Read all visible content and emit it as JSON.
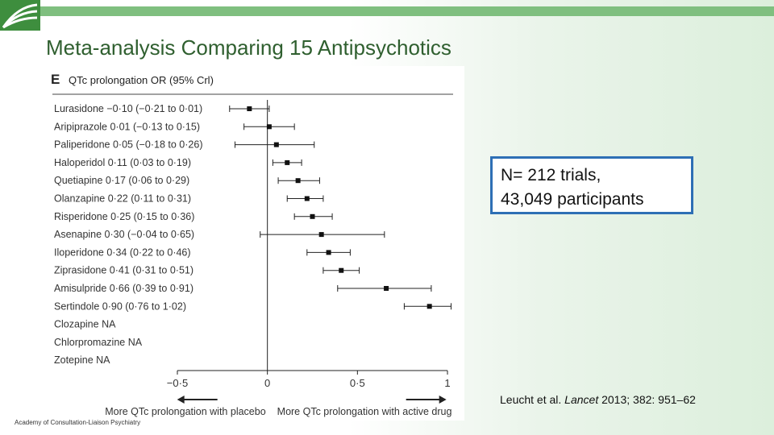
{
  "slide": {
    "title": "Meta-analysis Comparing 15 Antipsychotics",
    "stats_line1": "N= 212 trials,",
    "stats_line2": "43,049 participants",
    "citation_pre": "Leucht et al. ",
    "citation_journal": "Lancet",
    "citation_post": " 2013; 382: 951–62",
    "footer": "Academy of Consultation-Liaison Psychiatry",
    "accent_green": "#7fbf7f",
    "box_border": "#2e6fb5"
  },
  "chart_data": {
    "type": "forest",
    "panel_letter": "E",
    "title": "QTc prolongation OR (95% Crl)",
    "xlim": [
      -0.5,
      1
    ],
    "xticks": [
      "−0·5",
      "0",
      "0·5",
      "1"
    ],
    "tick_values": [
      -0.5,
      0,
      0.5,
      1
    ],
    "left_arrow_label": "More QTc prolongation with placebo",
    "right_arrow_label": "More QTc prolongation with active drug",
    "rows": [
      {
        "label": "Lurasidone −0·10 (−0·21 to 0·01)",
        "est": -0.1,
        "lo": -0.21,
        "hi": 0.01
      },
      {
        "label": "Aripiprazole 0·01 (−0·13 to 0·15)",
        "est": 0.01,
        "lo": -0.13,
        "hi": 0.15
      },
      {
        "label": "Paliperidone 0·05 (−0·18 to 0·26)",
        "est": 0.05,
        "lo": -0.18,
        "hi": 0.26
      },
      {
        "label": "Haloperidol 0·11 (0·03 to 0·19)",
        "est": 0.11,
        "lo": 0.03,
        "hi": 0.19
      },
      {
        "label": "Quetiapine 0·17 (0·06 to 0·29)",
        "est": 0.17,
        "lo": 0.06,
        "hi": 0.29
      },
      {
        "label": "Olanzapine 0·22 (0·11 to 0·31)",
        "est": 0.22,
        "lo": 0.11,
        "hi": 0.31
      },
      {
        "label": "Risperidone 0·25 (0·15 to 0·36)",
        "est": 0.25,
        "lo": 0.15,
        "hi": 0.36
      },
      {
        "label": "Asenapine 0·30 (−0·04 to 0·65)",
        "est": 0.3,
        "lo": -0.04,
        "hi": 0.65
      },
      {
        "label": "Iloperidone 0·34 (0·22 to 0·46)",
        "est": 0.34,
        "lo": 0.22,
        "hi": 0.46
      },
      {
        "label": "Ziprasidone 0·41 (0·31 to 0·51)",
        "est": 0.41,
        "lo": 0.31,
        "hi": 0.51
      },
      {
        "label": "Amisulpride 0·66 (0·39 to 0·91)",
        "est": 0.66,
        "lo": 0.39,
        "hi": 0.91
      },
      {
        "label": "Sertindole 0·90 (0·76 to 1·02)",
        "est": 0.9,
        "lo": 0.76,
        "hi": 1.02
      },
      {
        "label": "Clozapine NA",
        "est": null,
        "lo": null,
        "hi": null
      },
      {
        "label": "Chlorpromazine NA",
        "est": null,
        "lo": null,
        "hi": null
      },
      {
        "label": "Zotepine NA",
        "est": null,
        "lo": null,
        "hi": null
      }
    ]
  }
}
